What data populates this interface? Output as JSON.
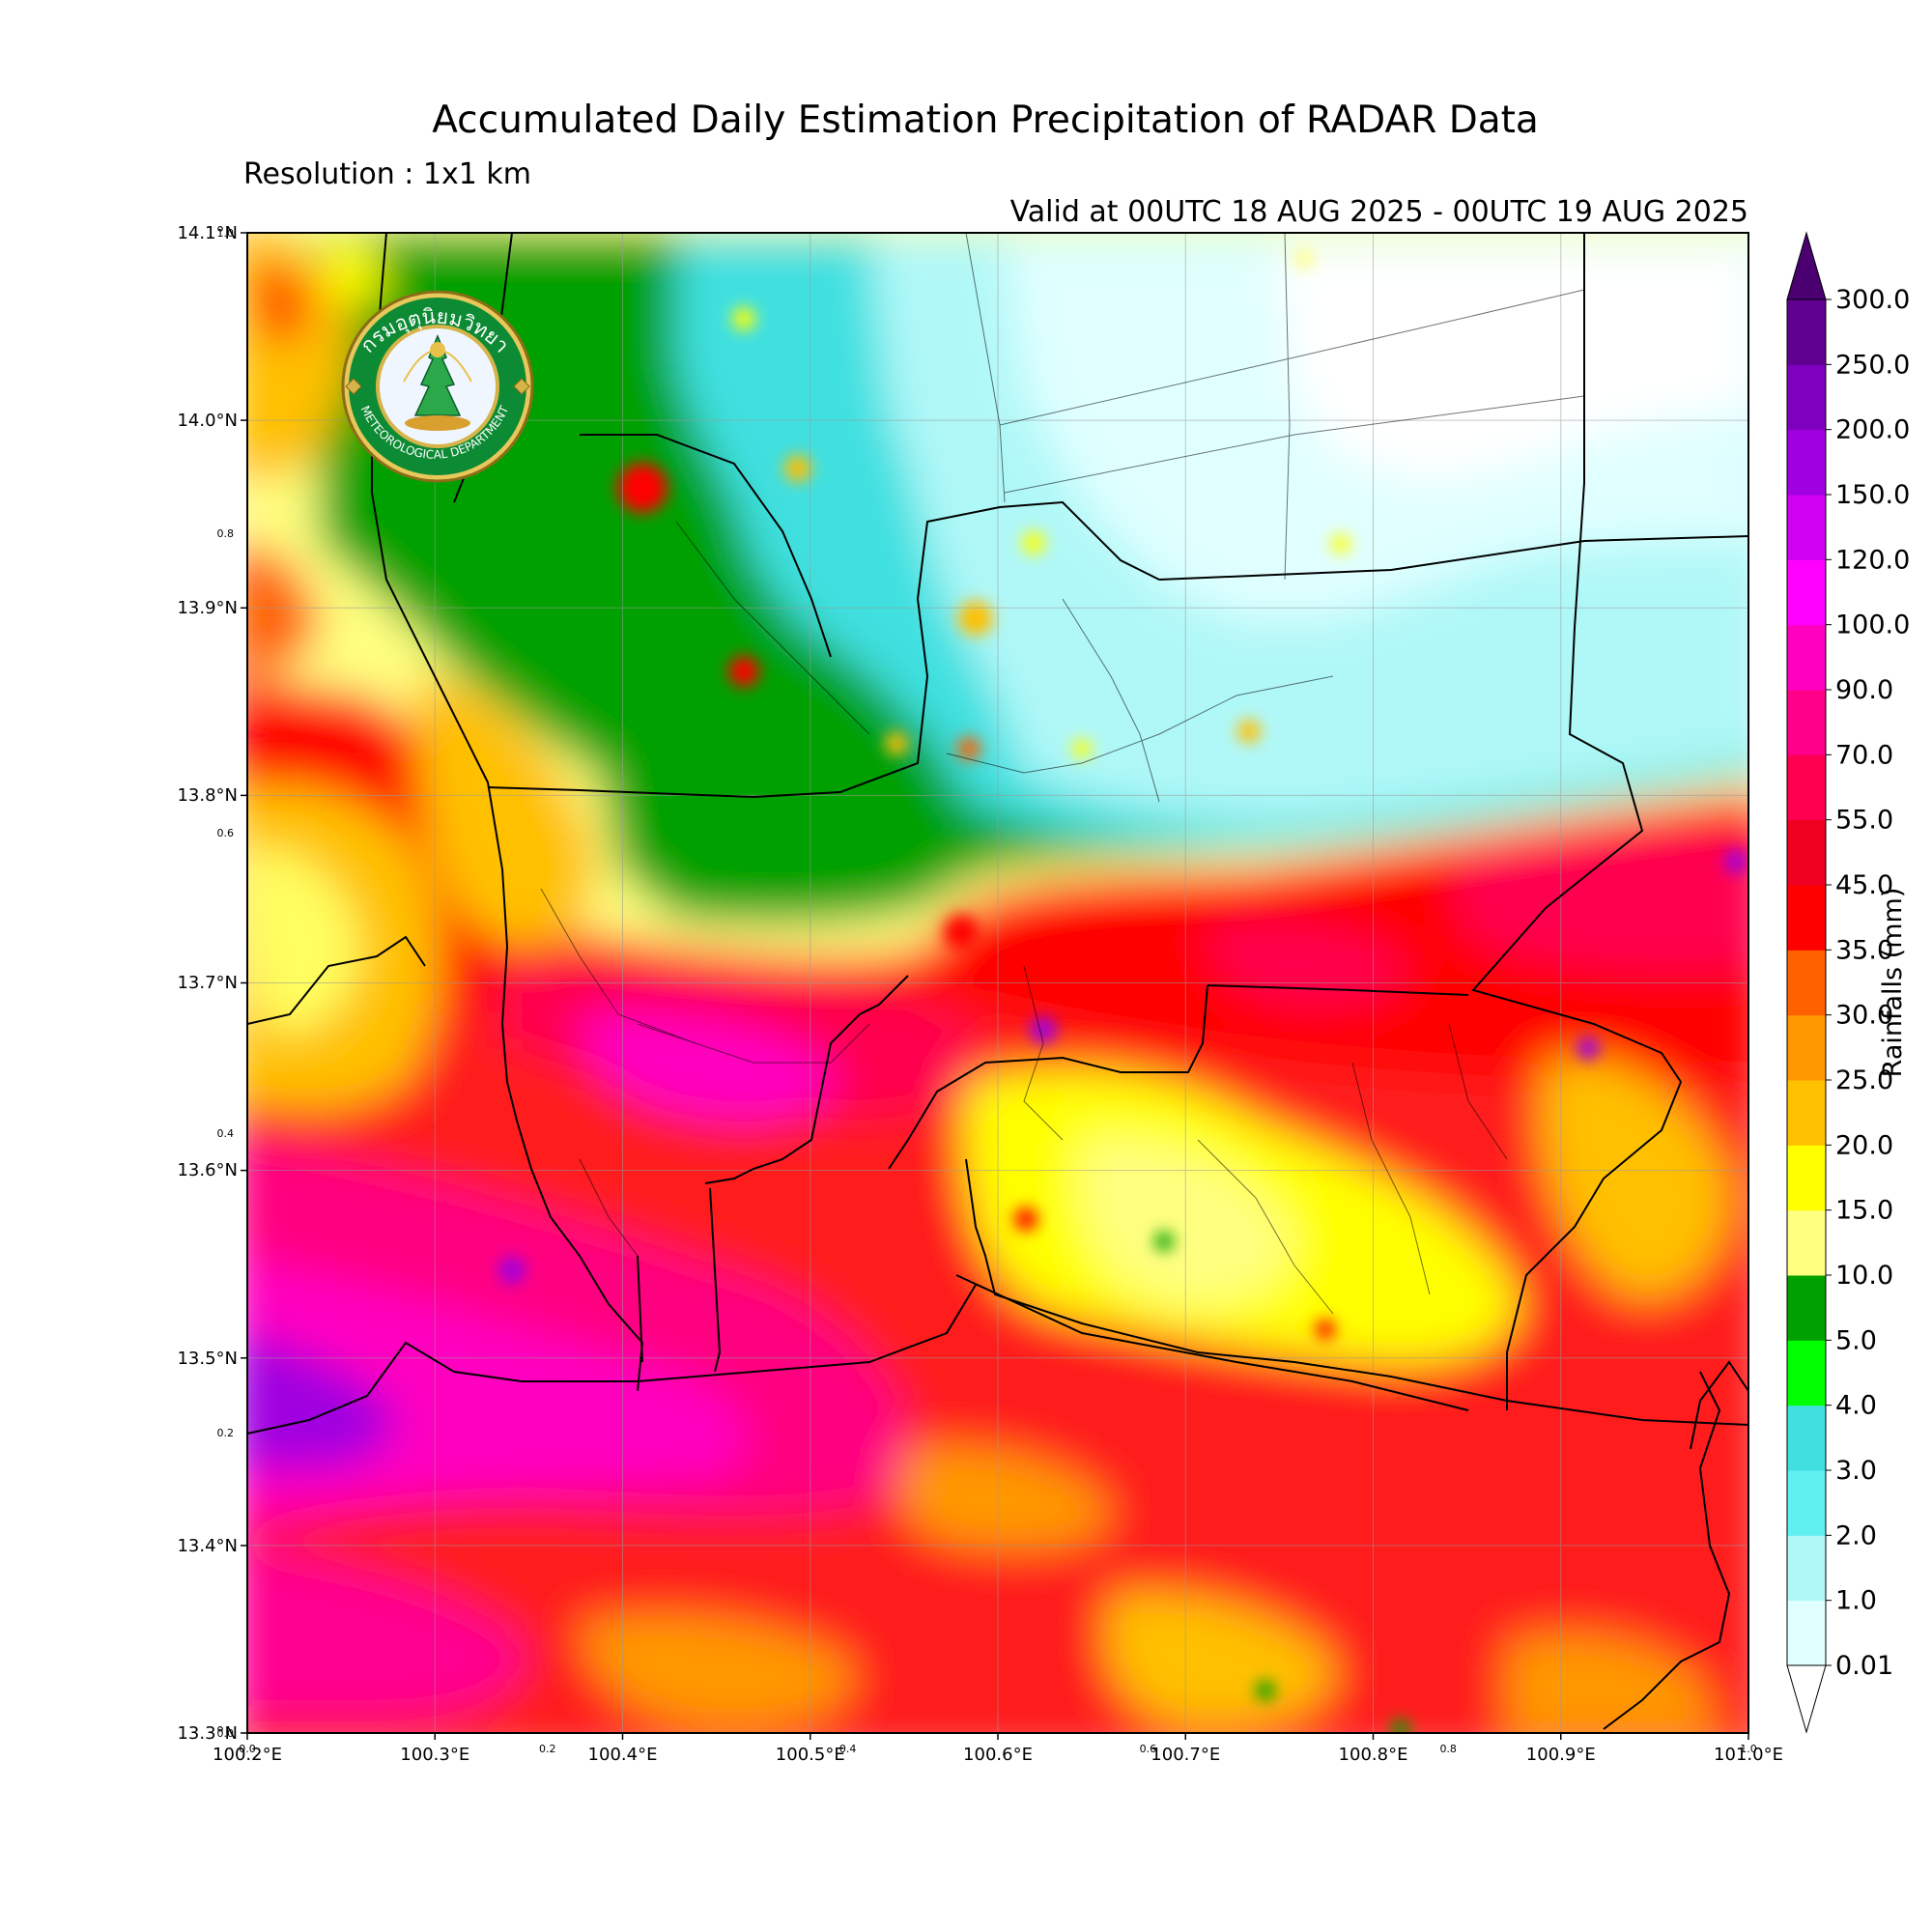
{
  "header": {
    "title": "Accumulated Daily Estimation Precipitation of RADAR Data",
    "resolution": "Resolution : 1x1 km",
    "valid": "Valid at 00UTC 18 AUG 2025 - 00UTC 19 AUG 2025"
  },
  "logo": {
    "arc_text_thai": "กรมอุตุนิยมวิทยา",
    "arc_text_en": "METEOROLOGICAL DEPARTMENT",
    "emblem": "deity-emblem-icon"
  },
  "map": {
    "lon_ticks": [
      "100.2°E",
      "100.3°E",
      "100.4°E",
      "100.5°E",
      "100.6°E",
      "100.7°E",
      "100.8°E",
      "100.9°E",
      "101.0°E"
    ],
    "lat_ticks": [
      "14.1°N",
      "14.0°N",
      "13.9°N",
      "13.8°N",
      "13.7°N",
      "13.6°N",
      "13.5°N",
      "13.4°N",
      "13.3°N"
    ],
    "inner_x_ticks": [
      "0.0",
      "0.2",
      "0.4",
      "0.6",
      "0.8",
      "1.0"
    ],
    "inner_y_ticks": [
      "1.0",
      "0.8",
      "0.6",
      "0.4",
      "0.2",
      "0.0"
    ]
  },
  "colorbar": {
    "label": "Rainfalls (mm)",
    "levels": [
      "0.01",
      "1.0",
      "2.0",
      "3.0",
      "4.0",
      "5.0",
      "10.0",
      "15.0",
      "20.0",
      "25.0",
      "30.0",
      "35.0",
      "45.0",
      "55.0",
      "70.0",
      "90.0",
      "100.0",
      "120.0",
      "150.0",
      "200.0",
      "250.0",
      "300.0"
    ],
    "colors": [
      "#e0ffff",
      "#b0f8f8",
      "#60f0f0",
      "#40e0e0",
      "#00ff00",
      "#00a000",
      "#ffff80",
      "#ffff00",
      "#ffc000",
      "#ff9800",
      "#ff6000",
      "#ff0000",
      "#f00020",
      "#ff0050",
      "#ff0088",
      "#ff00c0",
      "#ff00ff",
      "#d000f0",
      "#a000e0",
      "#8000c0",
      "#600090"
    ],
    "under_color": "#ffffff",
    "over_color": "#4a0070"
  }
}
